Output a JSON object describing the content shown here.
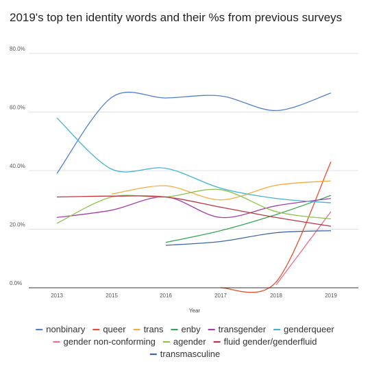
{
  "chart_data": {
    "type": "line",
    "title": "2019's top ten identity words and their %s from previous surveys",
    "xlabel": "Year",
    "ylabel": "",
    "x": [
      "2013",
      "2015",
      "2016",
      "2017",
      "2018",
      "2019"
    ],
    "ylim": [
      0,
      80
    ],
    "yticks": [
      "0.0%",
      "20.0%",
      "40.0%",
      "60.0%",
      "80.0%"
    ],
    "grid": true,
    "legend_position": "bottom",
    "series": [
      {
        "name": "nonbinary",
        "color": "#4f7fcf",
        "values": [
          39,
          65,
          64.8,
          65.5,
          60.5,
          66.5
        ]
      },
      {
        "name": "queer",
        "color": "#e8502e",
        "values": [
          null,
          null,
          null,
          0,
          2,
          43
        ]
      },
      {
        "name": "trans",
        "color": "#f6ad3c",
        "values": [
          null,
          32,
          34.8,
          30,
          35,
          36.5
        ]
      },
      {
        "name": "enby",
        "color": "#34a853",
        "values": [
          null,
          null,
          15.5,
          19.5,
          25,
          31.5
        ]
      },
      {
        "name": "transgender",
        "color": "#a43da8",
        "values": [
          24,
          26.5,
          31,
          24,
          28,
          30.5
        ]
      },
      {
        "name": "genderqueer",
        "color": "#3fb3d6",
        "values": [
          58,
          40.5,
          40.8,
          34,
          30.5,
          29
        ]
      },
      {
        "name": "gender non-conforming",
        "color": "#ee6d8a",
        "values": [
          null,
          null,
          null,
          null,
          1,
          26
        ]
      },
      {
        "name": "agender",
        "color": "#8bc34a",
        "values": [
          22,
          31,
          31,
          33.5,
          26,
          23.5
        ]
      },
      {
        "name": "fluid gender/genderfluid",
        "color": "#bf3340",
        "values": [
          31,
          31.3,
          31,
          27.5,
          24,
          21
        ]
      },
      {
        "name": "transmasculine",
        "color": "#3b67a6",
        "values": [
          null,
          null,
          14.5,
          15.8,
          18.8,
          19.5
        ]
      }
    ]
  }
}
